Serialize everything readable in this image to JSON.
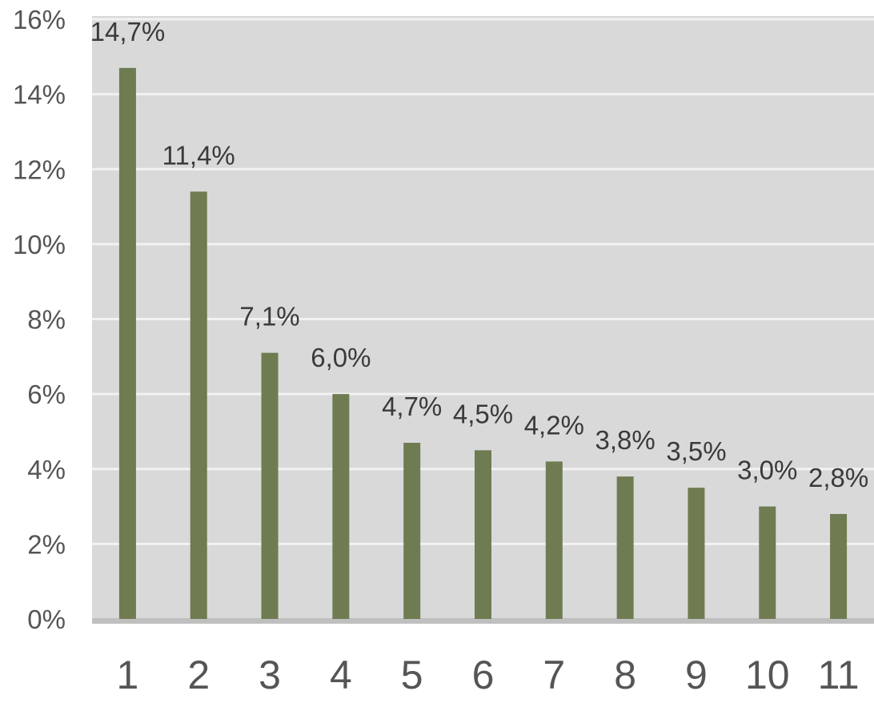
{
  "chart_data": {
    "type": "bar",
    "categories": [
      "1",
      "2",
      "3",
      "4",
      "5",
      "6",
      "7",
      "8",
      "9",
      "10",
      "11"
    ],
    "series": [
      {
        "values": [
          14.7,
          11.4,
          7.1,
          6.0,
          4.7,
          4.5,
          4.2,
          3.8,
          3.5,
          3.0,
          2.8
        ],
        "data_labels": [
          "14,7%",
          "11,4%",
          "7,1%",
          "6,0%",
          "4,7%",
          "4,5%",
          "4,2%",
          "3,8%",
          "3,5%",
          "3,0%",
          "2,8%"
        ]
      }
    ],
    "y_ticks": [
      0,
      2,
      4,
      6,
      8,
      10,
      12,
      14,
      16
    ],
    "y_tick_labels": [
      "0%",
      "2%",
      "4%",
      "6%",
      "8%",
      "10%",
      "12%",
      "14%",
      "16%"
    ],
    "ylim": [
      0,
      16
    ],
    "title": "",
    "xlabel": "",
    "ylabel": "",
    "grid": true,
    "legend": "none",
    "colors": {
      "bar": "#6f7b51",
      "plot_background": "#d9d9d9",
      "gridline": "#f2f2f2",
      "baseline": "#bfbfbf"
    }
  }
}
